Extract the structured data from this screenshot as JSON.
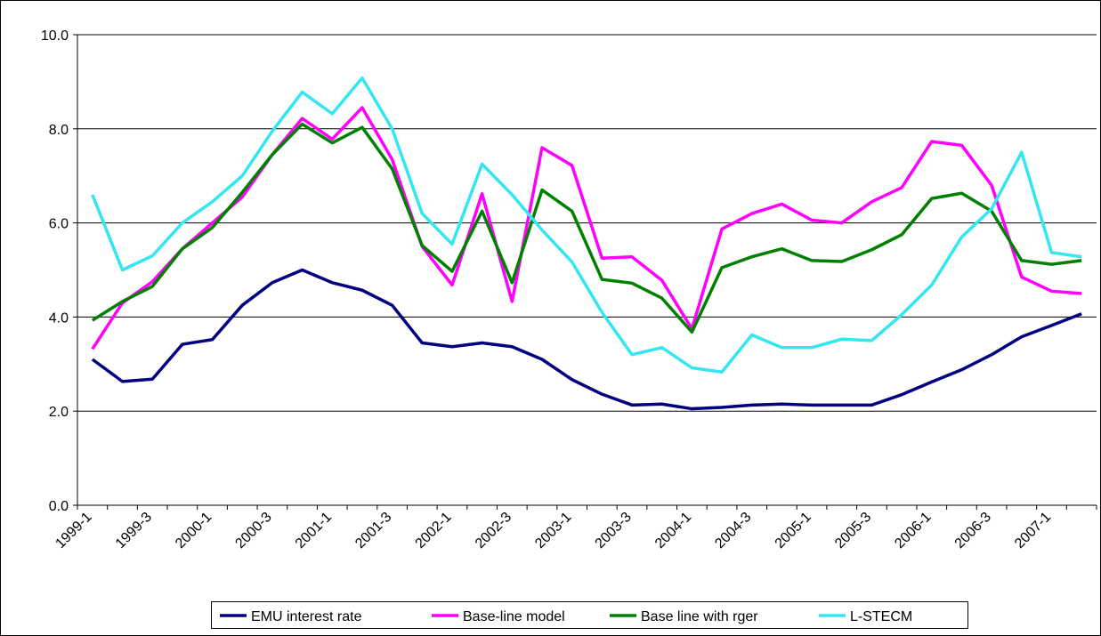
{
  "chart_data": {
    "type": "line",
    "categories": [
      "1999-1",
      null,
      "1999-3",
      null,
      "2000-1",
      null,
      "2000-3",
      null,
      "2001-1",
      null,
      "2001-3",
      null,
      "2002-1",
      null,
      "2002-3",
      null,
      "2003-1",
      null,
      "2003-3",
      null,
      "2004-1",
      null,
      "2004-3",
      null,
      "2005-1",
      null,
      "2005-3",
      null,
      "2006-1",
      null,
      "2006-3",
      null,
      "2007-1",
      null
    ],
    "series": [
      {
        "name": "EMU interest rate",
        "color": "#000080",
        "values": [
          3.1,
          2.63,
          2.68,
          3.42,
          3.52,
          4.25,
          4.73,
          5.0,
          4.73,
          4.57,
          4.25,
          3.45,
          3.37,
          3.45,
          3.37,
          3.1,
          2.67,
          2.36,
          2.13,
          2.15,
          2.05,
          2.08,
          2.13,
          2.15,
          2.13,
          2.13,
          2.13,
          2.35,
          2.62,
          2.88,
          3.2,
          3.58,
          3.82,
          4.07
        ]
      },
      {
        "name": "Base-line model",
        "color": "#ff00ff",
        "values": [
          3.32,
          4.3,
          4.75,
          5.45,
          6.0,
          6.55,
          7.45,
          8.22,
          7.78,
          8.45,
          7.35,
          5.5,
          4.68,
          6.62,
          4.33,
          7.6,
          7.22,
          5.25,
          5.28,
          4.78,
          3.75,
          5.87,
          6.2,
          6.4,
          6.06,
          6.0,
          6.45,
          6.75,
          7.73,
          7.65,
          6.8,
          4.85,
          4.55,
          4.5
        ]
      },
      {
        "name": "Base line with rger",
        "color": "#008000",
        "values": [
          3.93,
          4.33,
          4.65,
          5.45,
          5.9,
          6.65,
          7.45,
          8.1,
          7.7,
          8.03,
          7.15,
          5.52,
          4.97,
          6.25,
          4.73,
          6.7,
          6.25,
          4.8,
          4.72,
          4.4,
          3.68,
          5.05,
          5.28,
          5.45,
          5.2,
          5.18,
          5.43,
          5.75,
          6.52,
          6.63,
          6.25,
          5.2,
          5.12,
          5.2
        ]
      },
      {
        "name": "L-STECM",
        "color": "#33e6f0",
        "values": [
          6.6,
          5.0,
          5.3,
          6.0,
          6.45,
          7.0,
          7.95,
          8.78,
          8.32,
          9.08,
          8.0,
          6.2,
          5.55,
          7.25,
          6.6,
          5.85,
          5.17,
          4.1,
          3.2,
          3.35,
          2.92,
          2.83,
          3.62,
          3.35,
          3.35,
          3.53,
          3.5,
          4.05,
          4.68,
          5.7,
          6.3,
          7.5,
          5.37,
          5.28
        ]
      }
    ],
    "ylim": [
      0,
      10
    ],
    "yticks": [
      {
        "value": 0,
        "label": "0.0"
      },
      {
        "value": 2,
        "label": "2.0"
      },
      {
        "value": 4,
        "label": "4.0"
      },
      {
        "value": 6,
        "label": "6.0"
      },
      {
        "value": 8,
        "label": "8.0"
      },
      {
        "value": 10,
        "label": "10.0"
      }
    ],
    "grid": true,
    "legend": "bottom"
  }
}
